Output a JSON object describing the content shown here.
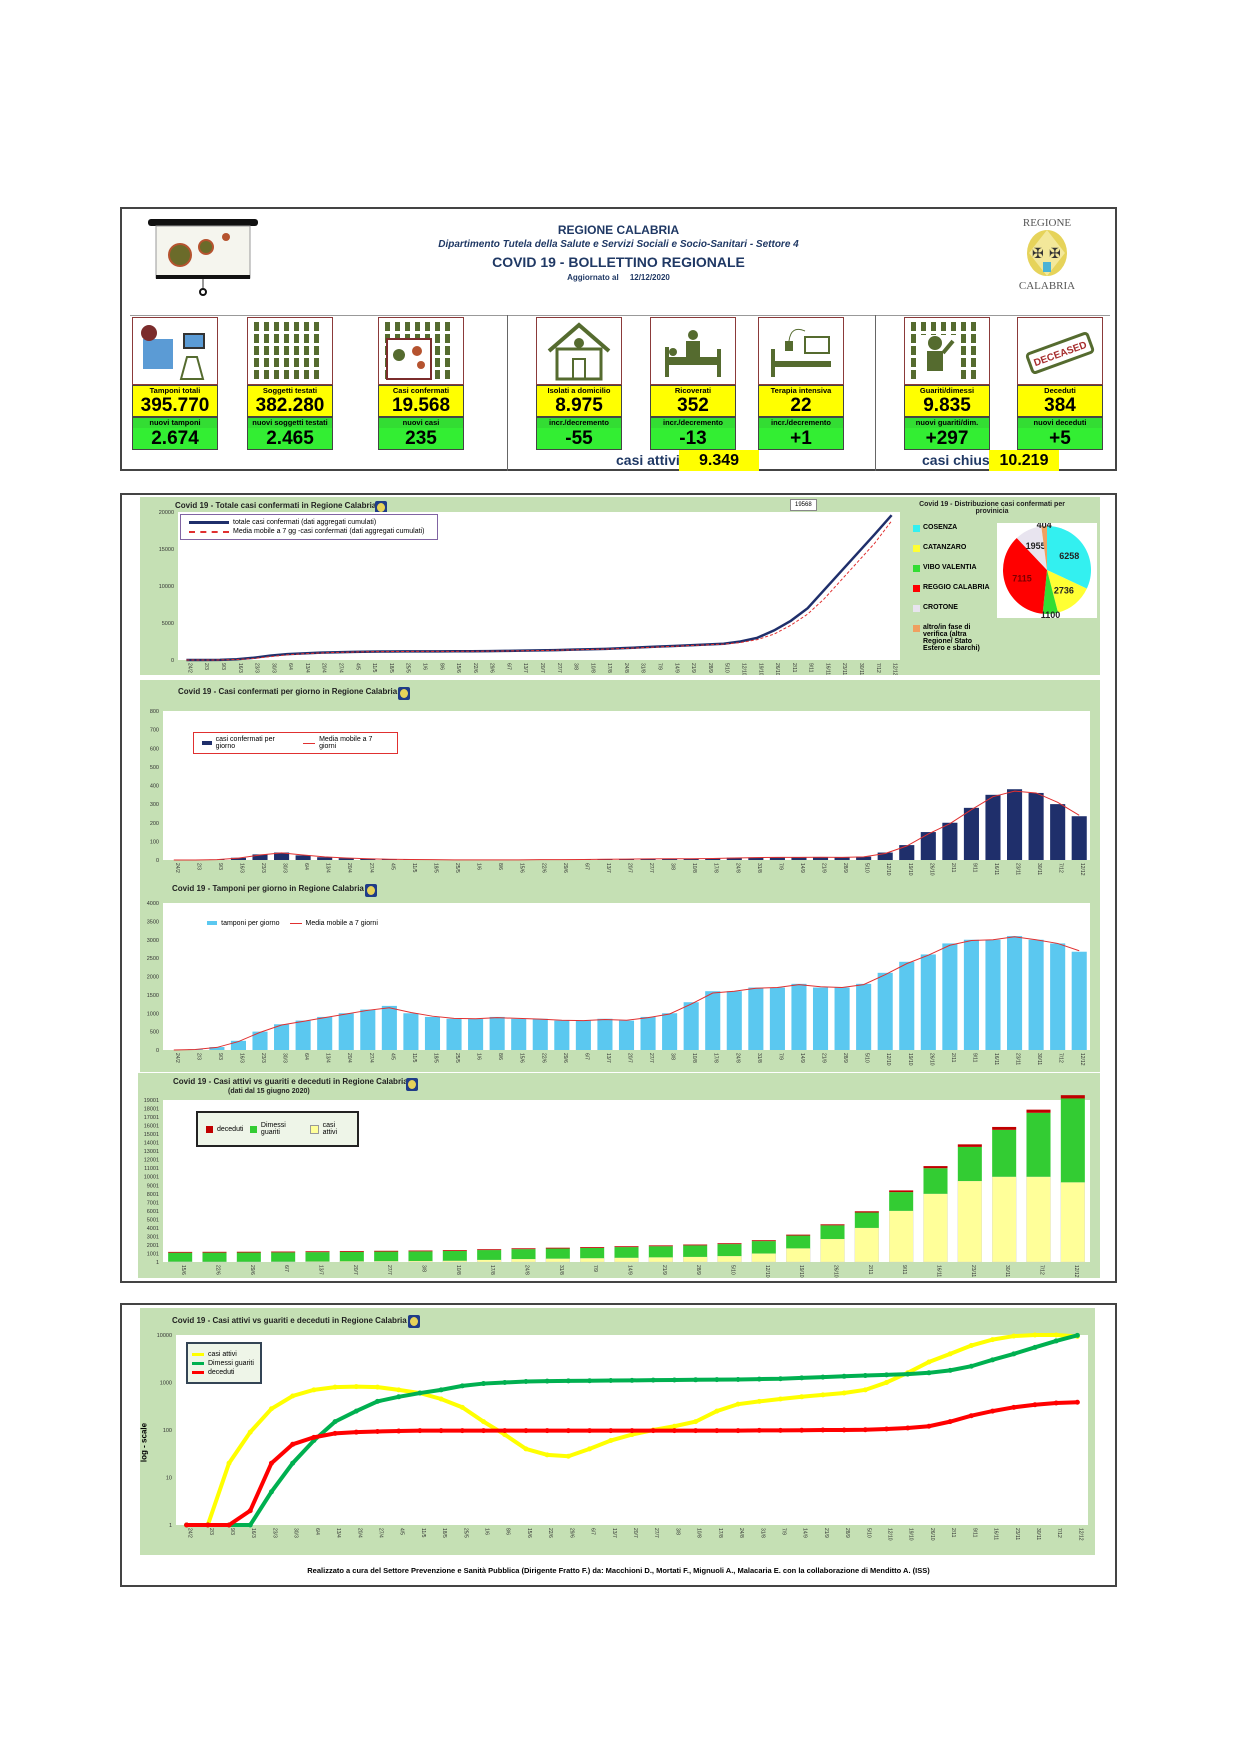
{
  "header": {
    "region": "REGIONE CALABRIA",
    "department": "Dipartimento Tutela della Salute e Servizi Sociali e Socio-Sanitari - Settore 4",
    "title": "COVID 19 - BOLLETTINO REGIONALE",
    "updated_label": "Aggiornato al",
    "updated_date": "12/12/2020",
    "logo_top": "REGIONE",
    "logo_bottom": "CALABRIA"
  },
  "stats": [
    {
      "icon": "lab-icon",
      "label": "Tamponi totali",
      "value": "395.770",
      "sub_label": "nuovi tamponi",
      "sub_value": "2.674"
    },
    {
      "icon": "people-icon",
      "label": "Soggetti testati",
      "value": "382.280",
      "sub_label": "nuovi soggetti testati",
      "sub_value": "2.465"
    },
    {
      "icon": "virus-person-icon",
      "label": "Casi confermati",
      "value": "19.568",
      "sub_label": "nuovi casi",
      "sub_value": "235"
    },
    {
      "icon": "house-icon",
      "label": "Isolati a domicilio",
      "value": "8.975",
      "sub_label": "incr./decremento",
      "sub_value": "-55"
    },
    {
      "icon": "hospital-bed-icon",
      "label": "Ricoverati",
      "value": "352",
      "sub_label": "incr./decremento",
      "sub_value": "-13"
    },
    {
      "icon": "icu-bed-icon",
      "label": "Terapia intensiva",
      "value": "22",
      "sub_label": "incr./decremento",
      "sub_value": "+1"
    },
    {
      "icon": "recovered-person-icon",
      "label": "Guariti/dimessi",
      "value": "9.835",
      "sub_label": "nuovi guariti/dim.",
      "sub_value": "+297"
    },
    {
      "icon": "deceased-stamp-icon",
      "label": "Deceduti",
      "value": "384",
      "sub_label": "nuovi deceduti",
      "sub_value": "+5"
    }
  ],
  "summary": {
    "active_label": "casi attivi",
    "active_value": "9.349",
    "closed_label": "casi chiusi",
    "closed_value": "10.219"
  },
  "footer": "Realizzato a cura del Settore Prevenzione e Sanità Pubblica (Dirigente Fratto F.) da:  Macchioni D., Mortati F., Mignuoli A., Malacaria E. con la collaborazione di Menditto A. (ISS)",
  "colors": {
    "panel_green": "#c5e0b4",
    "navy": "#1f2f6b",
    "red": "#e03030",
    "lightblue": "#5bc8f0",
    "yellow": "#ffff00",
    "green": "#33dd33"
  },
  "chart_data": [
    {
      "type": "line",
      "title": "Covid 19 - Totale casi confermati in Regione Calabria",
      "last_label": "19568",
      "ylim": [
        0,
        20000
      ],
      "yticks": [
        "0",
        "5000",
        "10000",
        "15000",
        "20000"
      ],
      "x": [
        "24/2",
        "2/3",
        "9/3",
        "16/3",
        "23/3",
        "30/3",
        "6/4",
        "13/4",
        "20/4",
        "27/4",
        "4/5",
        "11/5",
        "18/5",
        "25/5",
        "1/6",
        "8/6",
        "15/6",
        "22/6",
        "29/6",
        "6/7",
        "13/7",
        "20/7",
        "27/7",
        "3/8",
        "10/8",
        "17/8",
        "24/8",
        "31/8",
        "7/9",
        "14/9",
        "21/9",
        "28/9",
        "5/10",
        "12/10",
        "19/10",
        "26/10",
        "2/11",
        "9/11",
        "16/11",
        "23/11",
        "30/11",
        "7/12",
        "12/12"
      ],
      "series": [
        {
          "name": "totale casi confermati (dati aggregati cumulati)",
          "color": "#1f2f6b",
          "values": [
            0,
            1,
            20,
            100,
            300,
            600,
            800,
            900,
            1000,
            1050,
            1100,
            1130,
            1150,
            1160,
            1165,
            1170,
            1175,
            1190,
            1200,
            1230,
            1260,
            1300,
            1340,
            1400,
            1450,
            1500,
            1600,
            1700,
            1800,
            1900,
            2000,
            2100,
            2200,
            2500,
            3000,
            4000,
            5300,
            7000,
            9500,
            12000,
            14500,
            17000,
            19568
          ]
        },
        {
          "name": "Media mobile a 7 gg -casi confermati (dati aggregati cumulati)",
          "color": "#e03030",
          "values": [
            0,
            0,
            10,
            60,
            200,
            450,
            700,
            850,
            950,
            1030,
            1080,
            1120,
            1140,
            1155,
            1162,
            1168,
            1172,
            1182,
            1195,
            1215,
            1245,
            1280,
            1320,
            1370,
            1425,
            1475,
            1550,
            1650,
            1750,
            1850,
            1950,
            2050,
            2150,
            2350,
            2750,
            3500,
            4700,
            6200,
            8300,
            10800,
            13300,
            15800,
            18800
          ]
        }
      ]
    },
    {
      "type": "pie",
      "title": "Covid 19 - Distribuzione casi confermati per provinicia",
      "labels": [
        "COSENZA",
        "CATANZARO",
        "VIBO VALENTIA",
        "REGGIO CALABRIA",
        "CROTONE",
        "altro/in fase di verifica (altra Regione/ Stato Estero e sbarchi)"
      ],
      "values": [
        6258,
        2736,
        1100,
        7115,
        1955,
        404
      ],
      "value_labels": [
        "6258",
        "2736",
        "1100",
        "7115",
        "1955",
        "404"
      ],
      "colors": [
        "#33f0f0",
        "#ffff33",
        "#33dd33",
        "#ff0000",
        "#e8e4ef",
        "#f0a060"
      ]
    },
    {
      "type": "bar",
      "title": "Covid 19 - Casi confermati per giorno in Regione Calabria",
      "ylim": [
        0,
        800
      ],
      "yticks": [
        "0",
        "100",
        "200",
        "300",
        "400",
        "500",
        "600",
        "700",
        "800"
      ],
      "series": [
        {
          "name": "casi confermati per giorno",
          "color": "#1f2f6b",
          "values": [
            0,
            0,
            3,
            12,
            30,
            40,
            25,
            15,
            10,
            6,
            4,
            3,
            2,
            1,
            1,
            1,
            1,
            2,
            2,
            3,
            4,
            5,
            6,
            8,
            7,
            8,
            12,
            14,
            14,
            14,
            15,
            14,
            18,
            40,
            80,
            150,
            200,
            280,
            350,
            380,
            360,
            300,
            235
          ]
        },
        {
          "name": "Media mobile a 7 giorni",
          "color": "#e03030",
          "values": [
            0,
            0,
            2,
            10,
            27,
            38,
            27,
            17,
            11,
            7,
            4,
            3,
            2,
            1,
            1,
            1,
            1,
            2,
            2,
            3,
            4,
            5,
            6,
            7,
            7,
            8,
            11,
            13,
            14,
            14,
            15,
            14,
            17,
            35,
            75,
            140,
            195,
            270,
            340,
            370,
            360,
            310,
            240
          ]
        }
      ]
    },
    {
      "type": "bar",
      "title": "Covid 19 - Tamponi per giorno in Regione Calabria",
      "ylim": [
        0,
        4000
      ],
      "yticks": [
        "0",
        "500",
        "1000",
        "1500",
        "2000",
        "2500",
        "3000",
        "3500",
        "4000"
      ],
      "series": [
        {
          "name": "tamponi per giorno",
          "color": "#5bc8f0",
          "values": [
            0,
            20,
            80,
            250,
            500,
            700,
            800,
            900,
            1000,
            1100,
            1200,
            1000,
            900,
            850,
            850,
            900,
            850,
            850,
            800,
            800,
            850,
            800,
            900,
            1000,
            1300,
            1600,
            1600,
            1700,
            1700,
            1800,
            1700,
            1700,
            1800,
            2100,
            2400,
            2600,
            2900,
            3000,
            3000,
            3100,
            3000,
            2900,
            2674
          ]
        },
        {
          "name": "Media mobile a 7 giorni",
          "color": "#e03030",
          "values": [
            0,
            15,
            70,
            230,
            480,
            680,
            780,
            880,
            980,
            1080,
            1150,
            1020,
            920,
            860,
            850,
            880,
            860,
            840,
            810,
            800,
            830,
            810,
            880,
            980,
            1250,
            1550,
            1600,
            1680,
            1700,
            1780,
            1720,
            1700,
            1780,
            2050,
            2350,
            2580,
            2850,
            2980,
            3000,
            3080,
            3000,
            2900,
            2700
          ]
        }
      ]
    },
    {
      "type": "bar",
      "stacked": true,
      "title": "Covid 19 - Casi attivi vs guariti e deceduti in Regione Calabria",
      "subtitle": "(dati dal 15 giugno 2020)",
      "ylim": [
        1,
        19001
      ],
      "yticks": [
        "1",
        "1001",
        "2001",
        "3001",
        "4001",
        "5001",
        "6001",
        "7001",
        "8001",
        "9001",
        "10001",
        "11001",
        "12001",
        "13001",
        "14001",
        "15001",
        "16001",
        "17001",
        "18001",
        "19001"
      ],
      "x": [
        "15/6",
        "22/6",
        "29/6",
        "6/7",
        "13/7",
        "20/7",
        "27/7",
        "3/8",
        "10/8",
        "17/8",
        "24/8",
        "31/8",
        "7/9",
        "14/9",
        "21/9",
        "28/9",
        "5/10",
        "12/10",
        "19/10",
        "26/10",
        "2/11",
        "9/11",
        "16/11",
        "23/11",
        "30/11",
        "7/12",
        "12/12"
      ],
      "series": [
        {
          "name": "deceduti",
          "color": "#c00000",
          "values": [
            97,
            97,
            97,
            97,
            97,
            97,
            97,
            97,
            97,
            97,
            97,
            98,
            98,
            99,
            100,
            100,
            101,
            105,
            110,
            120,
            150,
            200,
            250,
            300,
            340,
            370,
            384
          ]
        },
        {
          "name": "Dimessi guariti",
          "color": "#33cc33",
          "values": [
            1050,
            1070,
            1080,
            1090,
            1100,
            1110,
            1120,
            1130,
            1140,
            1150,
            1160,
            1180,
            1200,
            1250,
            1300,
            1350,
            1400,
            1450,
            1500,
            1600,
            1800,
            2200,
            3000,
            4000,
            5500,
            7500,
            9835
          ]
        },
        {
          "name": "casi attivi",
          "color": "#ffff99",
          "values": [
            40,
            30,
            28,
            40,
            60,
            80,
            100,
            120,
            150,
            250,
            350,
            400,
            450,
            500,
            550,
            600,
            700,
            1000,
            1600,
            2700,
            4000,
            6000,
            8000,
            9500,
            10000,
            10000,
            9349
          ]
        }
      ]
    },
    {
      "type": "line",
      "scale": "log",
      "title": "Covid 19 - Casi attivi vs guariti e deceduti in Regione Calabria",
      "ylabel": "log - scale",
      "ylim": [
        1,
        10000
      ],
      "yticks": [
        "1",
        "10",
        "100",
        "1000",
        "10000"
      ],
      "series": [
        {
          "name": "casi attivi",
          "color": "#ffff00",
          "values": [
            0,
            1,
            20,
            90,
            280,
            520,
            700,
            800,
            820,
            800,
            700,
            600,
            450,
            300,
            150,
            80,
            40,
            30,
            28,
            40,
            60,
            80,
            100,
            120,
            150,
            250,
            350,
            400,
            450,
            500,
            550,
            600,
            700,
            1000,
            1600,
            2700,
            4000,
            6000,
            8000,
            9500,
            10000,
            10000,
            9349
          ]
        },
        {
          "name": "Dimessi guariti",
          "color": "#00b050",
          "values": [
            0,
            0,
            0,
            1,
            5,
            20,
            60,
            150,
            250,
            400,
            500,
            600,
            700,
            850,
            950,
            1000,
            1050,
            1070,
            1080,
            1090,
            1100,
            1110,
            1120,
            1130,
            1140,
            1150,
            1160,
            1180,
            1200,
            1250,
            1300,
            1350,
            1400,
            1450,
            1500,
            1600,
            1800,
            2200,
            3000,
            4000,
            5500,
            7500,
            9835
          ]
        },
        {
          "name": "deceduti",
          "color": "#ff0000",
          "values": [
            0,
            0,
            0,
            2,
            20,
            50,
            70,
            85,
            90,
            93,
            95,
            97,
            97,
            97,
            97,
            97,
            97,
            97,
            97,
            97,
            97,
            97,
            97,
            97,
            97,
            97,
            97,
            98,
            98,
            99,
            100,
            100,
            101,
            105,
            110,
            120,
            150,
            200,
            250,
            300,
            340,
            370,
            384
          ]
        }
      ]
    }
  ]
}
